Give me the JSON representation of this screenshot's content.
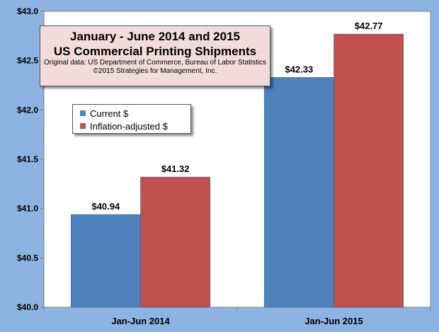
{
  "chart_data": {
    "type": "bar",
    "title": "January - June 2014 and 2015",
    "subtitle": "US Commercial Printing Shipments",
    "notes": [
      "Original data: US Department of Commerce, Bureau of Labor Statistics",
      "©2015 Strategies for Management, Inc."
    ],
    "categories": [
      "Jan-Jun 2014",
      "Jan-Jun 2015"
    ],
    "series": [
      {
        "name": "Current $",
        "color": "#4f81bd",
        "values": [
          40.94,
          42.33
        ],
        "labels": [
          "$40.94",
          "$42.33"
        ]
      },
      {
        "name": "Inflation-adjusted $",
        "color": "#c0504d",
        "values": [
          41.32,
          42.77
        ],
        "labels": [
          "$41.32",
          "$42.77"
        ]
      }
    ],
    "ylim": [
      40.0,
      43.0
    ],
    "yticks": [
      40.0,
      40.5,
      41.0,
      41.5,
      42.0,
      42.5,
      43.0
    ],
    "ytick_labels": [
      "$40.0",
      "$40.5",
      "$41.0",
      "$41.5",
      "$42.0",
      "$42.5",
      "$43.0"
    ],
    "grid": false,
    "legend_position": "upper-left"
  }
}
